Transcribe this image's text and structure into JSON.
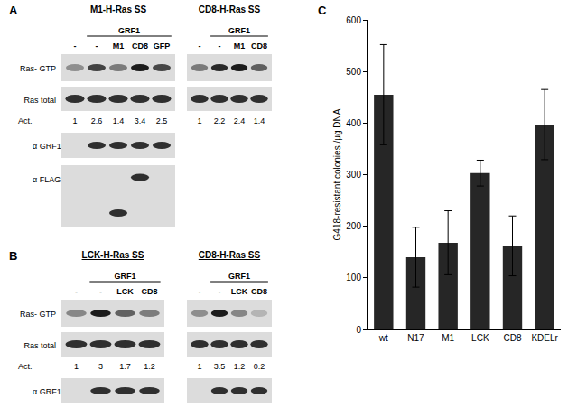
{
  "panels": [
    {
      "label": "A",
      "row_labels": [
        "Ras- GTP",
        "Ras total"
      ],
      "activity_label": "Act.",
      "lower_labels": [
        "α GRF1",
        "α FLAG"
      ],
      "blots": [
        {
          "title": "M1-H-Ras SS",
          "group_label": "GRF1",
          "lanes": [
            "-",
            "-",
            "M1",
            "CD8",
            "GFP"
          ],
          "activity": [
            1,
            2.6,
            1.4,
            3.4,
            2.5
          ],
          "lower_blots": true
        },
        {
          "title": "CD8-H-Ras SS",
          "group_label": "GRF1",
          "lanes": [
            "-",
            "-",
            "M1",
            "CD8"
          ],
          "activity": [
            1,
            2.2,
            2.4,
            1.4
          ],
          "lower_blots": false
        }
      ]
    },
    {
      "label": "B",
      "row_labels": [
        "Ras- GTP",
        "Ras total"
      ],
      "activity_label": "Act.",
      "lower_labels": [
        "α GRF1"
      ],
      "blots": [
        {
          "title": "LCK-H-Ras SS",
          "group_label": "GRF1",
          "lanes": [
            "-",
            "-",
            "LCK",
            "CD8"
          ],
          "activity": [
            1,
            3,
            1.7,
            1.2
          ],
          "lower_blots": true
        },
        {
          "title": "CD8-H-Ras SS",
          "group_label": "GRF1",
          "lanes": [
            "-",
            "-",
            "LCK",
            "CD8"
          ],
          "activity": [
            1,
            3.5,
            1.2,
            0.2
          ],
          "lower_blots": true
        }
      ]
    }
  ],
  "chart_data": {
    "type": "bar",
    "panel_label": "C",
    "y_label": "G418-resistant colonies /μg DNA",
    "categories": [
      "wt",
      "N17",
      "M1",
      "LCK",
      "CD8",
      "KDELr"
    ],
    "values": [
      455,
      140,
      168,
      303,
      162,
      397
    ],
    "errors": [
      97,
      58,
      62,
      25,
      58,
      68
    ],
    "color": "#262626",
    "ylim": [
      0,
      600
    ],
    "yticks": [
      0,
      100,
      200,
      300,
      400,
      500,
      600
    ],
    "grid": false
  }
}
